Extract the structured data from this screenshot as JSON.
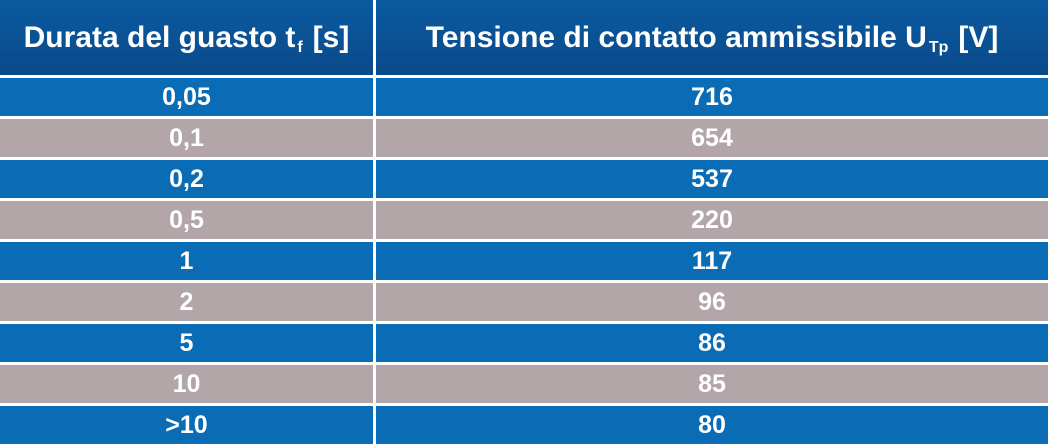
{
  "table": {
    "header": [
      {
        "text": "Durata del guasto t",
        "sub": "f",
        "after": "[s]"
      },
      {
        "text": "Tensione di contatto ammissibile U",
        "sub": "Tp",
        "after": "[V]"
      }
    ],
    "rows": [
      [
        "0,05",
        "716"
      ],
      [
        "0,1",
        "654"
      ],
      [
        "0,2",
        "537"
      ],
      [
        "0,5",
        "220"
      ],
      [
        "1",
        "117"
      ],
      [
        "2",
        "96"
      ],
      [
        "5",
        "86"
      ],
      [
        "10",
        "85"
      ],
      [
        ">10",
        "80"
      ]
    ]
  }
}
